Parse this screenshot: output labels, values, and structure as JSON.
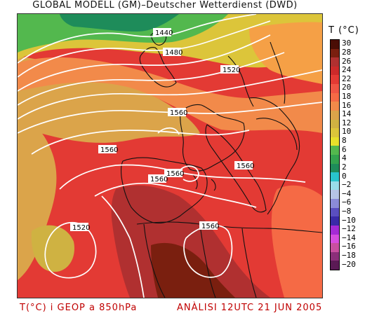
{
  "header": {
    "title": "GLOBAL MODELL (GM)–Deutscher Wetterdienst (DWD)"
  },
  "legend": {
    "title": "T (°C)",
    "ticks": [
      "30",
      "28",
      "26",
      "24",
      "22",
      "20",
      "18",
      "16",
      "14",
      "12",
      "10",
      "8",
      "6",
      "4",
      "2",
      "0",
      "−2",
      "−4",
      "−6",
      "−8",
      "−10",
      "−12",
      "−14",
      "−16",
      "−18",
      "−20"
    ],
    "colors": [
      "#4a0d05",
      "#7a1f0f",
      "#b03030",
      "#cc2a2a",
      "#e33a34",
      "#ef5544",
      "#f56a45",
      "#f28a4a",
      "#dba44a",
      "#cfb242",
      "#dcc53a",
      "#e8e02a",
      "#53b84e",
      "#33a34e",
      "#1e8c5a",
      "#29c4cc",
      "#99ddea",
      "#b5c4e6",
      "#8b8bd8",
      "#5a4ec0",
      "#3a2aa8",
      "#a52ad6",
      "#d64de0",
      "#c84fa0",
      "#8b2f7a",
      "#5b1a55"
    ]
  },
  "map": {
    "isobar_labels": [
      "1440",
      "1480",
      "1520",
      "1560",
      "1560",
      "1560",
      "1560",
      "1560",
      "1560",
      "1520"
    ]
  },
  "footer": {
    "left": "T(°C) i GEOP a 850hPa",
    "right": "ANÀLISI 12UTC 21 JUN 2005"
  }
}
